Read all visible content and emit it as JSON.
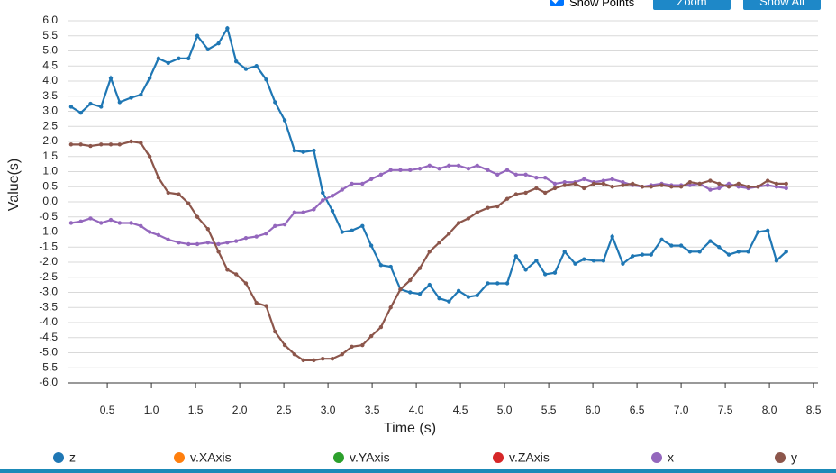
{
  "controls": {
    "show_points_label": "Show Points",
    "show_points": true,
    "buttons": [
      "Zoom",
      "Show All"
    ]
  },
  "chart_data": {
    "type": "line",
    "y_label": "Value(s)",
    "x_label": "Time (s)",
    "x": [
      0.09,
      0.2,
      0.31,
      0.43,
      0.54,
      0.64,
      0.77,
      0.88,
      0.98,
      1.08,
      1.19,
      1.31,
      1.42,
      1.52,
      1.64,
      1.76,
      1.86,
      1.96,
      2.07,
      2.19,
      2.3,
      2.4,
      2.51,
      2.62,
      2.72,
      2.84,
      2.94,
      3.05,
      3.16,
      3.27,
      3.39,
      3.49,
      3.6,
      3.71,
      3.82,
      3.93,
      4.04,
      4.15,
      4.26,
      4.37,
      4.48,
      4.59,
      4.69,
      4.81,
      4.92,
      5.03,
      5.13,
      5.24,
      5.36,
      5.46,
      5.57,
      5.68,
      5.8,
      5.9,
      6.01,
      6.12,
      6.22,
      6.34,
      6.45,
      6.56,
      6.66,
      6.78,
      6.89,
      7.0,
      7.1,
      7.21,
      7.33,
      7.43,
      7.54,
      7.65,
      7.76,
      7.87,
      7.98,
      8.08,
      8.19
    ],
    "series": [
      {
        "name": "z",
        "color": "#1f77b4",
        "values": [
          3.15,
          2.95,
          3.25,
          3.15,
          4.1,
          3.3,
          3.45,
          3.55,
          4.1,
          4.75,
          4.6,
          4.75,
          4.75,
          5.5,
          5.05,
          5.25,
          5.75,
          4.65,
          4.4,
          4.5,
          4.05,
          3.3,
          2.7,
          1.7,
          1.65,
          1.7,
          0.3,
          -0.3,
          -1.0,
          -0.95,
          -0.8,
          -1.45,
          -2.1,
          -2.15,
          -2.9,
          -3.0,
          -3.05,
          -2.75,
          -3.2,
          -3.3,
          -2.95,
          -3.15,
          -3.1,
          -2.7,
          -2.7,
          -2.7,
          -1.8,
          -2.25,
          -1.95,
          -2.4,
          -2.35,
          -1.65,
          -2.05,
          -1.9,
          -1.95,
          -1.95,
          -1.15,
          -2.05,
          -1.8,
          -1.75,
          -1.75,
          -1.25,
          -1.45,
          -1.45,
          -1.65,
          -1.65,
          -1.3,
          -1.5,
          -1.75,
          -1.65,
          -1.65,
          -1.0,
          -0.95,
          -1.95,
          -1.65
        ]
      },
      {
        "name": "v.XAxis",
        "color": "#ff7f0e"
      },
      {
        "name": "v.YAxis",
        "color": "#2ca02c"
      },
      {
        "name": "v.ZAxis",
        "color": "#d62728"
      },
      {
        "name": "x",
        "color": "#9467bd",
        "values": [
          -0.7,
          -0.65,
          -0.55,
          -0.7,
          -0.6,
          -0.7,
          -0.7,
          -0.8,
          -1.0,
          -1.1,
          -1.25,
          -1.35,
          -1.4,
          -1.4,
          -1.35,
          -1.4,
          -1.35,
          -1.3,
          -1.2,
          -1.15,
          -1.05,
          -0.8,
          -0.75,
          -0.35,
          -0.35,
          -0.25,
          0.05,
          0.2,
          0.4,
          0.6,
          0.6,
          0.75,
          0.9,
          1.05,
          1.05,
          1.05,
          1.1,
          1.2,
          1.1,
          1.2,
          1.2,
          1.1,
          1.2,
          1.05,
          0.9,
          1.05,
          0.9,
          0.9,
          0.8,
          0.8,
          0.6,
          0.65,
          0.65,
          0.75,
          0.65,
          0.7,
          0.75,
          0.65,
          0.55,
          0.5,
          0.55,
          0.6,
          0.55,
          0.55,
          0.55,
          0.6,
          0.4,
          0.45,
          0.6,
          0.5,
          0.45,
          0.5,
          0.55,
          0.5,
          0.45
        ]
      },
      {
        "name": "y",
        "color": "#8c564b",
        "values": [
          1.9,
          1.9,
          1.85,
          1.9,
          1.9,
          1.9,
          2.0,
          1.95,
          1.5,
          0.8,
          0.3,
          0.25,
          -0.05,
          -0.5,
          -0.9,
          -1.65,
          -2.25,
          -2.4,
          -2.7,
          -3.35,
          -3.45,
          -4.3,
          -4.75,
          -5.05,
          -5.25,
          -5.25,
          -5.2,
          -5.2,
          -5.05,
          -4.8,
          -4.75,
          -4.45,
          -4.15,
          -3.5,
          -2.9,
          -2.6,
          -2.2,
          -1.65,
          -1.35,
          -1.05,
          -0.7,
          -0.55,
          -0.35,
          -0.2,
          -0.15,
          0.1,
          0.25,
          0.3,
          0.45,
          0.3,
          0.45,
          0.55,
          0.6,
          0.45,
          0.6,
          0.6,
          0.5,
          0.55,
          0.6,
          0.5,
          0.5,
          0.55,
          0.5,
          0.5,
          0.65,
          0.6,
          0.7,
          0.6,
          0.5,
          0.6,
          0.5,
          0.5,
          0.7,
          0.6,
          0.6
        ]
      }
    ],
    "xlim": [
      0.05,
      8.55
    ],
    "ylim": [
      -6.0,
      6.0
    ],
    "xticks": [
      0.5,
      {
        "value": 1,
        "label": "1.0"
      },
      1.5,
      {
        "value": 2,
        "label": "2.0"
      },
      2.5,
      {
        "value": 3,
        "label": "3.0"
      },
      3.5,
      {
        "value": 4,
        "label": "4.0"
      },
      4.5,
      {
        "value": 5,
        "label": "5.0"
      },
      5.5,
      {
        "value": 6,
        "label": "6.0"
      },
      6.5,
      {
        "value": 7,
        "label": "7.0"
      },
      7.5,
      {
        "value": 8,
        "label": "8.0"
      },
      8.5
    ],
    "yticks": [
      {
        "value": -6,
        "label": "-6.0"
      },
      -5.5,
      {
        "value": -5,
        "label": "-5.0"
      },
      -4.5,
      {
        "value": -4,
        "label": "-4.0"
      },
      -3.5,
      {
        "value": -3,
        "label": "-3.0"
      },
      -2.5,
      {
        "value": -2,
        "label": "-2.0"
      },
      -1.5,
      {
        "value": -1,
        "label": "-1.0"
      },
      -0.5,
      {
        "value": 0,
        "label": "0.0"
      },
      0.5,
      {
        "value": 1,
        "label": "1.0"
      },
      1.5,
      {
        "value": 2,
        "label": "2.0"
      },
      2.5,
      {
        "value": 3,
        "label": "3.0"
      },
      3.5,
      {
        "value": 4,
        "label": "4.0"
      },
      4.5,
      {
        "value": 5,
        "label": "5.0"
      },
      5.5,
      {
        "value": 6,
        "label": "6.0"
      }
    ],
    "grid": true
  }
}
